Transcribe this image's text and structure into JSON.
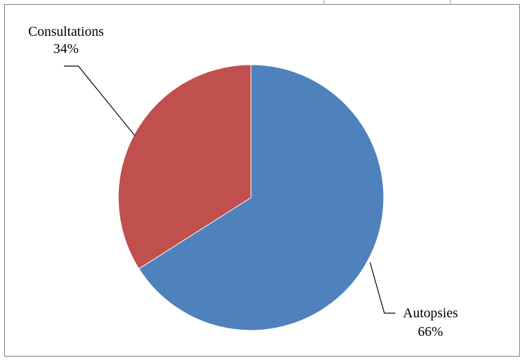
{
  "chart_data": {
    "type": "pie",
    "slices": [
      {
        "label": "Autopsies",
        "percent_label": "66%",
        "value": 66,
        "color": "#4f81bd"
      },
      {
        "label": "Consultations",
        "percent_label": "34%",
        "value": 34,
        "color": "#c0504d"
      }
    ],
    "start_angle_deg": 0,
    "direction": "clockwise",
    "legend": "none",
    "data_labels": "outside with leader lines"
  }
}
